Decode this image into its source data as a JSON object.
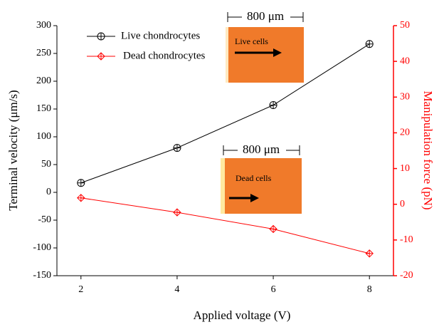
{
  "chart_data": {
    "type": "line",
    "x_label": "Applied voltage (V)",
    "y_label": "Terminal velocity (μm/s)",
    "y2_label": "Manipulation force (pN)",
    "x": [
      2,
      4,
      6,
      8
    ],
    "xlim": [
      1.5,
      8.5
    ],
    "xticks": [
      2,
      4,
      6,
      8
    ],
    "ylim": [
      -150,
      300
    ],
    "yticks": [
      -150,
      -100,
      -50,
      0,
      50,
      100,
      150,
      200,
      250,
      300
    ],
    "y2lim": [
      -20,
      50
    ],
    "y2ticks": [
      -20,
      -10,
      0,
      10,
      20,
      30,
      40,
      50
    ],
    "y2_color": "#ff0000",
    "series": [
      {
        "name": "Live chondrocytes",
        "color": "#000000",
        "marker": "circle",
        "values": [
          17,
          80,
          157,
          267
        ]
      },
      {
        "name": "Dead chondrocytes",
        "color": "#ff0000",
        "marker": "diamond",
        "values": [
          -10,
          -36,
          -66,
          -110
        ]
      }
    ],
    "annotations": [
      "800 μm",
      "Live cells",
      "800 μm",
      "Dead cells"
    ]
  }
}
